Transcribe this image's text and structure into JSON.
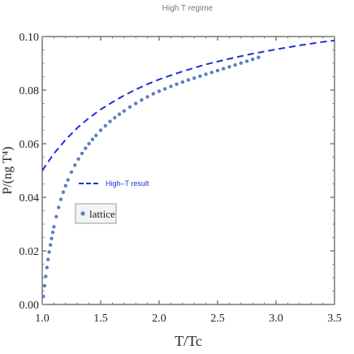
{
  "chart_data": {
    "type": "scatter",
    "title": "High T regime",
    "xlabel": "T/Tc",
    "ylabel": "P/(ng T⁴)",
    "xlim": [
      1.0,
      3.5
    ],
    "ylim": [
      0.0,
      0.1
    ],
    "xticks": [
      "1.0",
      "1.5",
      "2.0",
      "2.5",
      "3.0",
      "3.5"
    ],
    "yticks": [
      "0.00",
      "0.02",
      "0.04",
      "0.06",
      "0.08",
      "0.10"
    ],
    "grid": false,
    "legend": [
      {
        "label": "High–T result",
        "style": "dashed-line",
        "placement": "middle-left"
      },
      {
        "label": "lattice",
        "style": "points",
        "placement": "middle-left"
      }
    ],
    "series": [
      {
        "name": "High–T result",
        "style": "dashed-line",
        "color": "#1f2fd8",
        "x": [
          1.0,
          1.1,
          1.2,
          1.3,
          1.4,
          1.5,
          1.6,
          1.7,
          1.8,
          1.9,
          2.0,
          2.2,
          2.4,
          2.6,
          2.8,
          3.0,
          3.2,
          3.4,
          3.5
        ],
        "y": [
          0.05,
          0.0563,
          0.0615,
          0.0659,
          0.0696,
          0.0728,
          0.0755,
          0.078,
          0.0802,
          0.0822,
          0.084,
          0.087,
          0.0896,
          0.0917,
          0.0936,
          0.0952,
          0.0967,
          0.098,
          0.0985
        ]
      },
      {
        "name": "lattice",
        "style": "points",
        "color": "#5a7fc0",
        "x": [
          1.01,
          1.02,
          1.03,
          1.04,
          1.05,
          1.06,
          1.07,
          1.08,
          1.09,
          1.1,
          1.12,
          1.14,
          1.16,
          1.18,
          1.2,
          1.22,
          1.25,
          1.28,
          1.31,
          1.34,
          1.37,
          1.4,
          1.43,
          1.46,
          1.5,
          1.54,
          1.58,
          1.62,
          1.66,
          1.7,
          1.75,
          1.8,
          1.85,
          1.9,
          1.95,
          2.0,
          2.05,
          2.1,
          2.15,
          2.2,
          2.25,
          2.3,
          2.35,
          2.4,
          2.45,
          2.5,
          2.55,
          2.6,
          2.65,
          2.7,
          2.75,
          2.8,
          2.85
        ],
        "y": [
          0.003,
          0.007,
          0.0105,
          0.0138,
          0.0168,
          0.0196,
          0.0222,
          0.0246,
          0.0269,
          0.029,
          0.0328,
          0.0362,
          0.0392,
          0.0419,
          0.0443,
          0.0465,
          0.0494,
          0.052,
          0.0543,
          0.0564,
          0.0583,
          0.06,
          0.0616,
          0.0631,
          0.065,
          0.0667,
          0.0683,
          0.0697,
          0.071,
          0.0722,
          0.0737,
          0.075,
          0.0763,
          0.0775,
          0.0786,
          0.0796,
          0.0805,
          0.0814,
          0.0822,
          0.083,
          0.0838,
          0.0845,
          0.0852,
          0.0859,
          0.0866,
          0.0873,
          0.088,
          0.0887,
          0.0894,
          0.0901,
          0.0908,
          0.0915,
          0.0922
        ]
      }
    ]
  }
}
